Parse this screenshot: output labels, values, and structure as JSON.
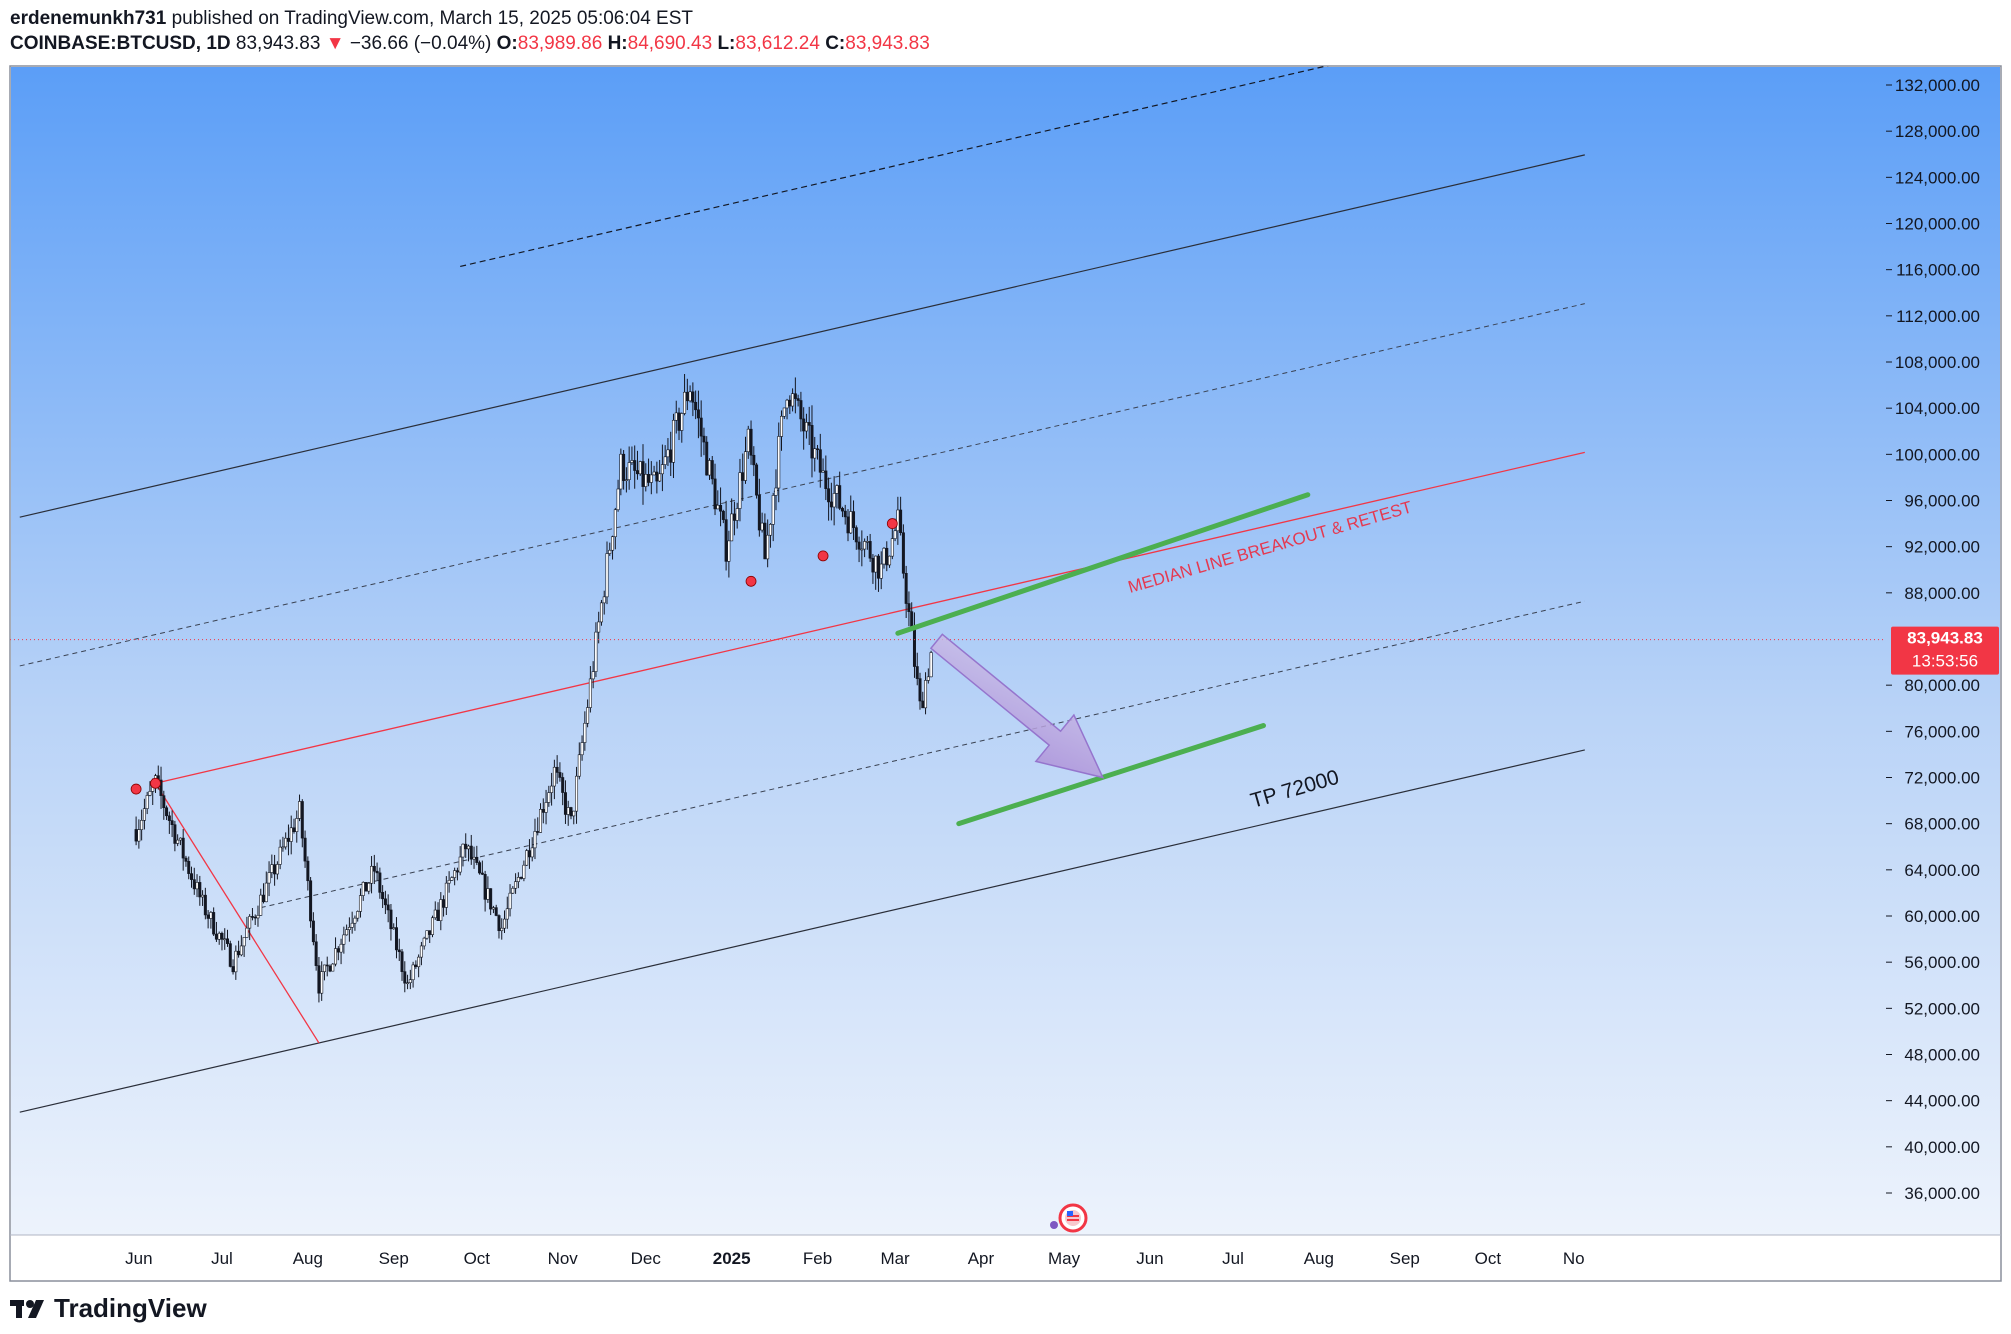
{
  "header": {
    "author": "erdenemunkh731",
    "published_text": "published on TradingView.com, March 15, 2025 05:06:04 EST",
    "symbol": "COINBASE:BTCUSD, 1D",
    "last": "83,943.83",
    "change_arrow": "▼",
    "change": "−36.66 (−0.04%)",
    "o_label": "O:",
    "o": "83,989.86",
    "h_label": "H:",
    "h": "84,690.43",
    "l_label": "L:",
    "l": "83,612.24",
    "c_label": "C:",
    "c": "83,943.83"
  },
  "price_tag": {
    "price": "83,943.83",
    "countdown": "13:53:56",
    "color": "#f23645"
  },
  "annotations": {
    "breakout": "MEDIAN LINE BREAKOUT & RETEST",
    "target": "TP 72000"
  },
  "brand": {
    "name": "TradingView",
    "logo_icon": "tradingview-logo-icon"
  },
  "colors": {
    "bg_top": "#5b9ef7",
    "bg_bottom": "#eaf1fb",
    "up": "#131722",
    "down": "#131722",
    "median": "#f23645",
    "highlight": "#4caf50",
    "arrow": "#b39ddb",
    "pivot_dot": "#f23645"
  },
  "chart_data": {
    "type": "candlestick",
    "y_ticks": [
      "132,000.00",
      "128,000.00",
      "124,000.00",
      "120,000.00",
      "116,000.00",
      "112,000.00",
      "108,000.00",
      "104,000.00",
      "100,000.00",
      "96,000.00",
      "92,000.00",
      "88,000.00",
      "80,000.00",
      "76,000.00",
      "72,000.00",
      "68,000.00",
      "64,000.00",
      "60,000.00",
      "56,000.00",
      "52,000.00",
      "48,000.00",
      "44,000.00",
      "40,000.00",
      "36,000.00"
    ],
    "x_ticks": [
      "Jun",
      "Jul",
      "Aug",
      "Sep",
      "Oct",
      "Nov",
      "Dec",
      "2025",
      "Feb",
      "Mar",
      "Apr",
      "May",
      "Jun",
      "Jul",
      "Aug",
      "Sep",
      "Oct",
      "No"
    ],
    "ylim": [
      32000,
      134000
    ],
    "pitchfork": {
      "pivots": [
        {
          "date": "2024-06-07",
          "price": 71500
        },
        {
          "date": "2024-08-05",
          "price": 49000
        },
        {
          "date": "2024-12-17",
          "price": 108000
        }
      ]
    },
    "monthly_path": [
      {
        "date": "2024-05-31",
        "price": 67500
      },
      {
        "date": "2024-06-07",
        "price": 71500
      },
      {
        "date": "2024-06-24",
        "price": 61000
      },
      {
        "date": "2024-07-05",
        "price": 56000
      },
      {
        "date": "2024-07-29",
        "price": 69000
      },
      {
        "date": "2024-08-05",
        "price": 54000
      },
      {
        "date": "2024-08-25",
        "price": 64000
      },
      {
        "date": "2024-09-06",
        "price": 54000
      },
      {
        "date": "2024-09-27",
        "price": 66000
      },
      {
        "date": "2024-10-10",
        "price": 59000
      },
      {
        "date": "2024-10-29",
        "price": 72500
      },
      {
        "date": "2024-11-04",
        "price": 68000
      },
      {
        "date": "2024-11-22",
        "price": 99000
      },
      {
        "date": "2024-12-05",
        "price": 97000
      },
      {
        "date": "2024-12-17",
        "price": 106000
      },
      {
        "date": "2024-12-30",
        "price": 92000
      },
      {
        "date": "2025-01-07",
        "price": 101000
      },
      {
        "date": "2025-01-13",
        "price": 91000
      },
      {
        "date": "2025-01-21",
        "price": 106000
      },
      {
        "date": "2025-02-03",
        "price": 98000
      },
      {
        "date": "2025-02-24",
        "price": 90000
      },
      {
        "date": "2025-03-02",
        "price": 94000
      },
      {
        "date": "2025-03-10",
        "price": 78000
      },
      {
        "date": "2025-03-15",
        "price": 83943.83
      }
    ],
    "last_price": 83943.83,
    "breakout_segment": [
      {
        "date": "2025-03-02",
        "price": 84500
      },
      {
        "date": "2025-07-28",
        "price": 96500
      }
    ],
    "target_segment": [
      {
        "date": "2025-03-24",
        "price": 68000
      },
      {
        "date": "2025-07-12",
        "price": 76500
      }
    ],
    "arrow": [
      {
        "date": "2025-03-16",
        "price": 83800
      },
      {
        "date": "2025-05-15",
        "price": 72000
      }
    ],
    "pivot_markers": [
      {
        "date": "2024-05-31",
        "price": 71000
      },
      {
        "date": "2024-06-07",
        "price": 71500
      },
      {
        "date": "2025-01-08",
        "price": 89000
      },
      {
        "date": "2025-02-03",
        "price": 91200
      },
      {
        "date": "2025-02-28",
        "price": 94000
      }
    ]
  }
}
